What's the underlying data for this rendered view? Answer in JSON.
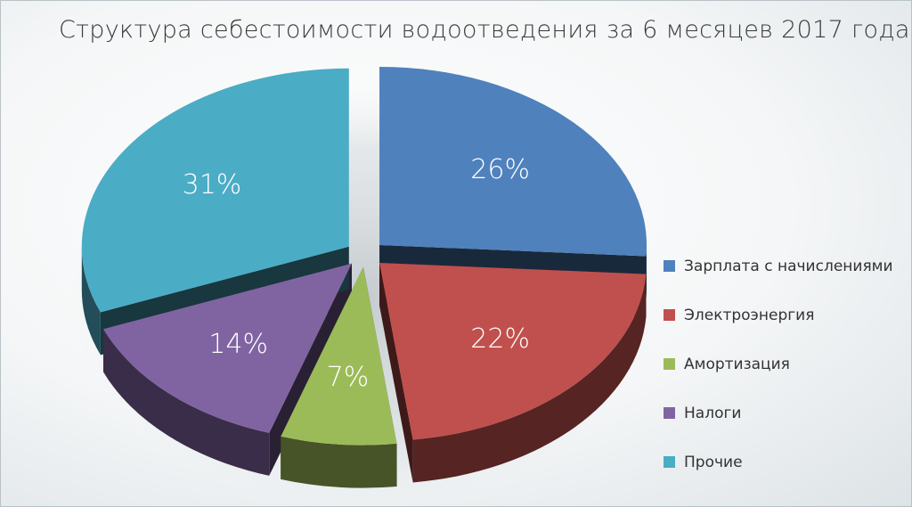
{
  "chart_data": {
    "type": "pie",
    "title": "Структура себестоимости водоотведения за 6 месяцев 2017 года",
    "legend_position": "right",
    "slices": [
      {
        "name": "Зарплата с начислениями",
        "value": 26,
        "label": "26%",
        "color": "#4f81bd"
      },
      {
        "name": "Электроэнергия",
        "value": 22,
        "label": "22%",
        "color": "#c0504d"
      },
      {
        "name": "Амортизация",
        "value": 7,
        "label": "7%",
        "color": "#9bbb59"
      },
      {
        "name": "Налоги",
        "value": 14,
        "label": "14%",
        "color": "#8064a2"
      },
      {
        "name": "Прочие",
        "value": 31,
        "label": "31%",
        "color": "#4bacc6"
      }
    ]
  }
}
